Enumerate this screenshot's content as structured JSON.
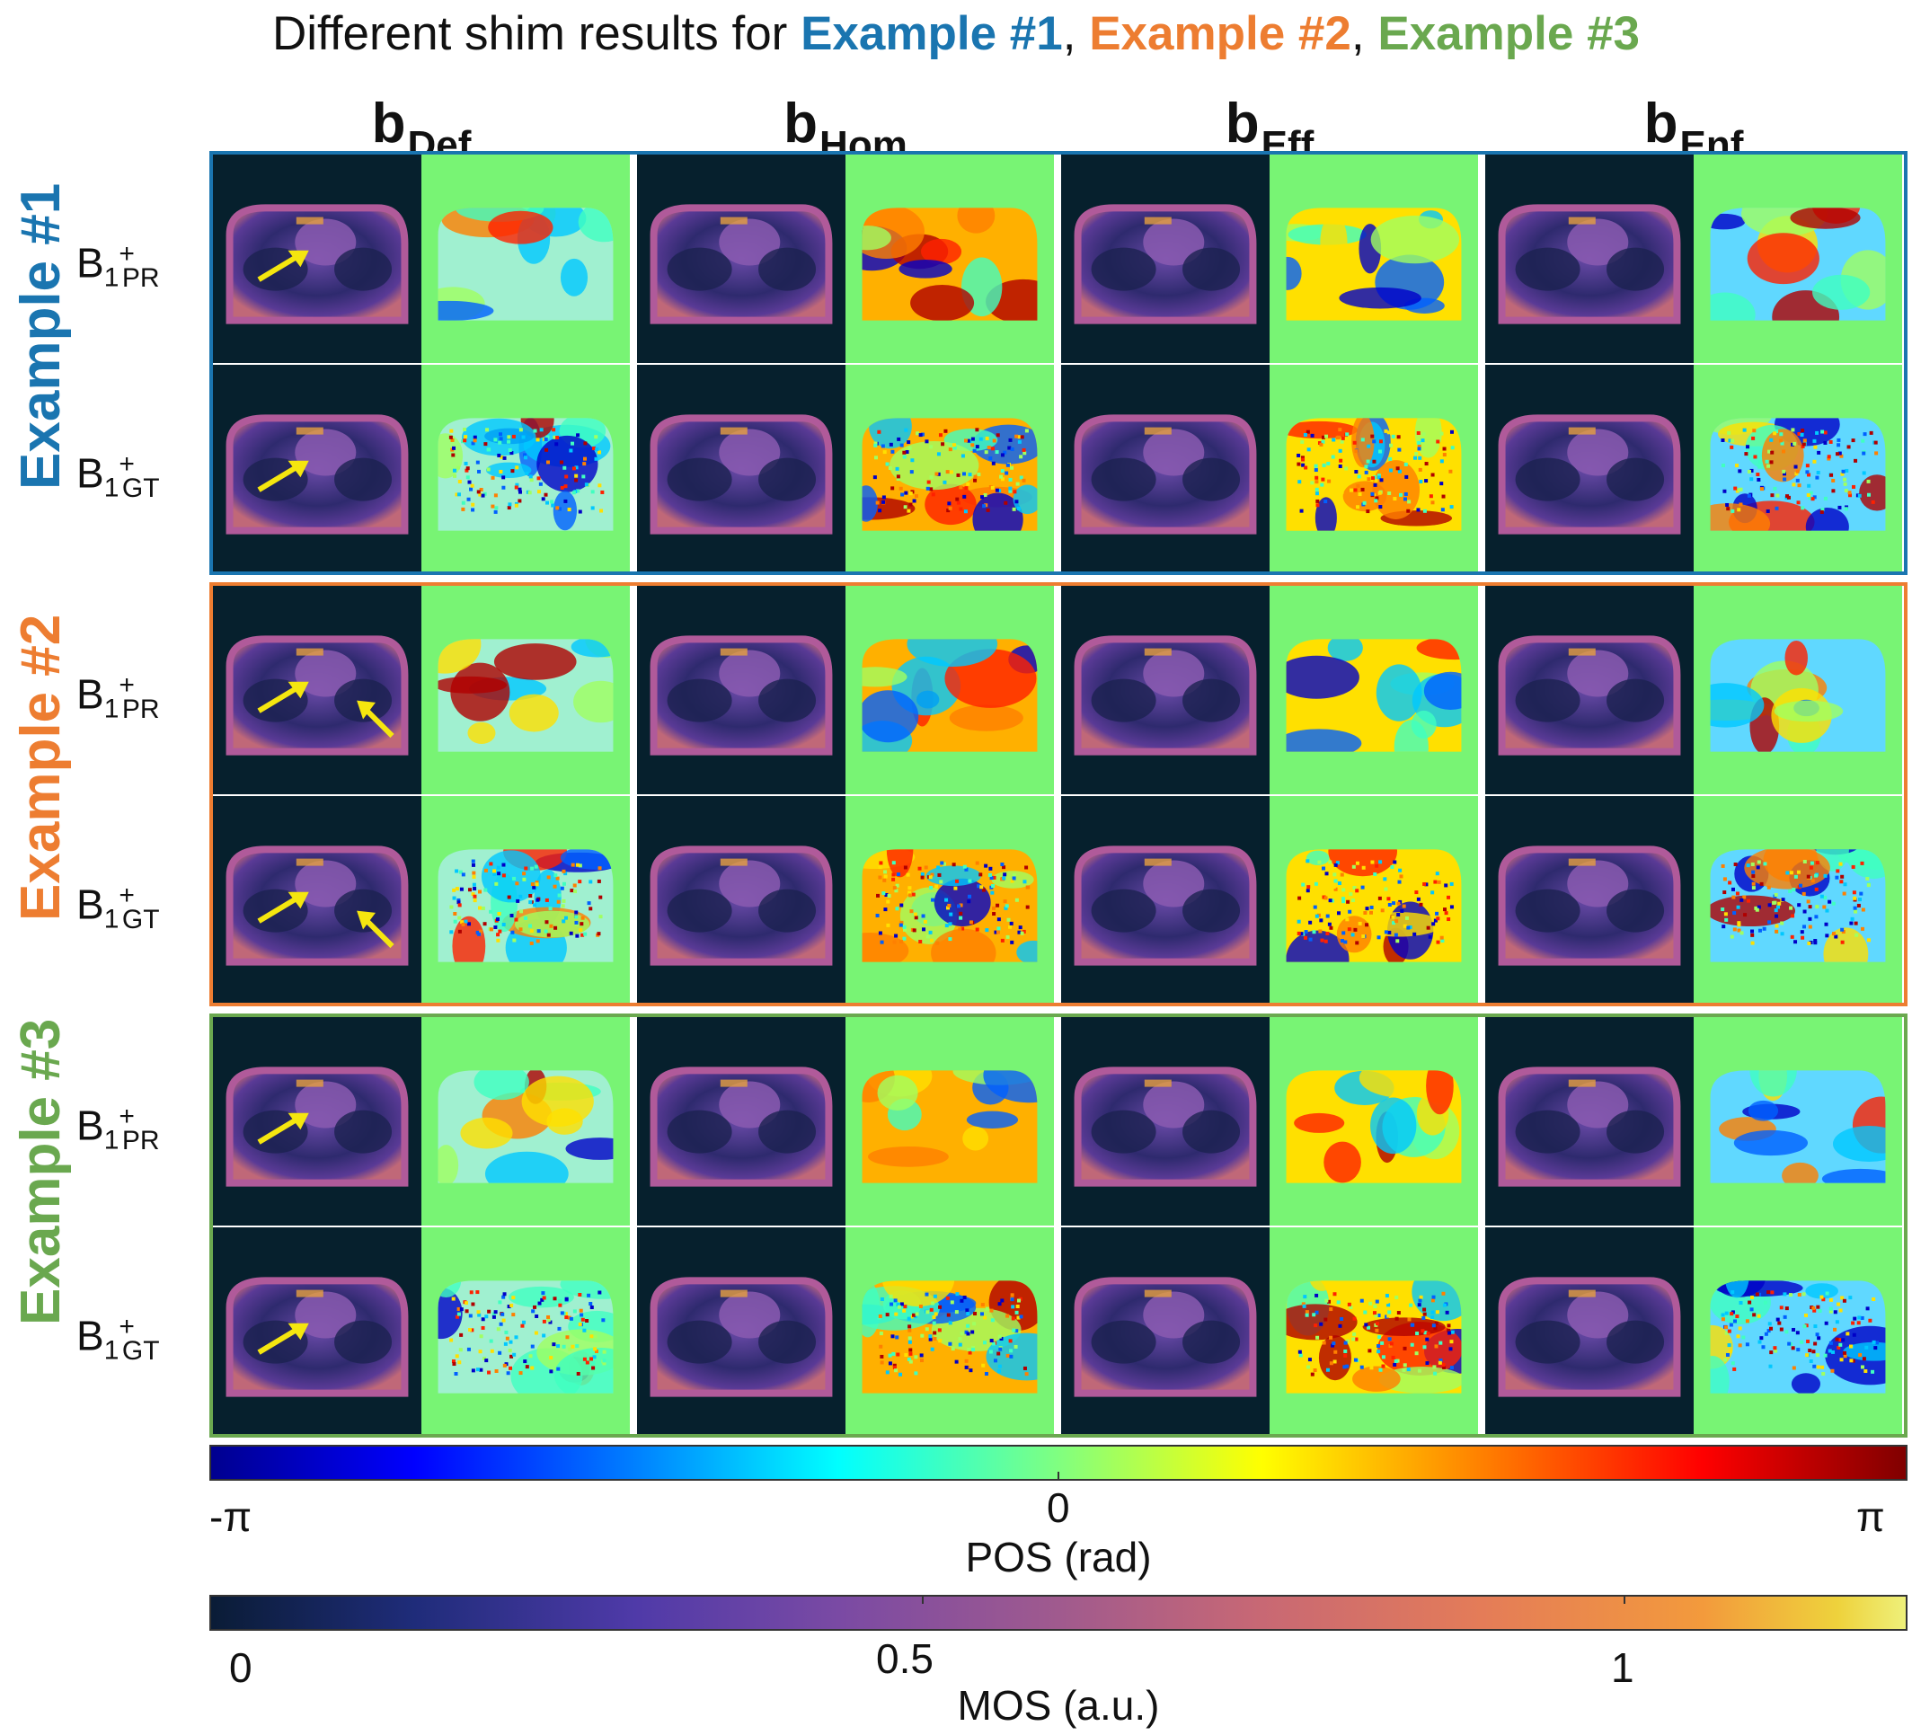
{
  "title": {
    "prefix": "Different shim results for ",
    "example1": "Example #1",
    "sep1": ", ",
    "example2": "Example #2",
    "sep2": ", ",
    "example3": "Example #3"
  },
  "columns": [
    {
      "base": "b",
      "sub": "Def"
    },
    {
      "base": "b",
      "sub": "Hom"
    },
    {
      "base": "b",
      "sub": "Eff"
    },
    {
      "base": "b",
      "sub": "Enf"
    }
  ],
  "examples": [
    {
      "label": "Example #1",
      "color": "#1a75b0"
    },
    {
      "label": "Example #2",
      "color": "#ed7d31"
    },
    {
      "label": "Example #3",
      "color": "#6aa84f"
    }
  ],
  "row_labels": [
    {
      "base": "B",
      "idx": "1",
      "sup": "+",
      "sub": "PR"
    },
    {
      "base": "B",
      "idx": "1",
      "sup": "+",
      "sub": "GT"
    }
  ],
  "colorbars": {
    "phase": {
      "min_label": "-π",
      "mid_label": "0",
      "max_label": "π",
      "label": "POS (rad)",
      "colormap": "jet",
      "range": [
        -3.1416,
        3.1416
      ]
    },
    "magnitude": {
      "ticks": [
        "0",
        "0.5",
        "1"
      ],
      "tick_values": [
        0,
        0.5,
        1
      ],
      "label": "MOS (a.u.)",
      "colormap": "plasma-like",
      "range": [
        0,
        1.2
      ]
    }
  },
  "panel_colors": {
    "magnitude_background": "#06202d",
    "phase_background": "#78f474",
    "annotation_arrow": "#f5e60f"
  }
}
